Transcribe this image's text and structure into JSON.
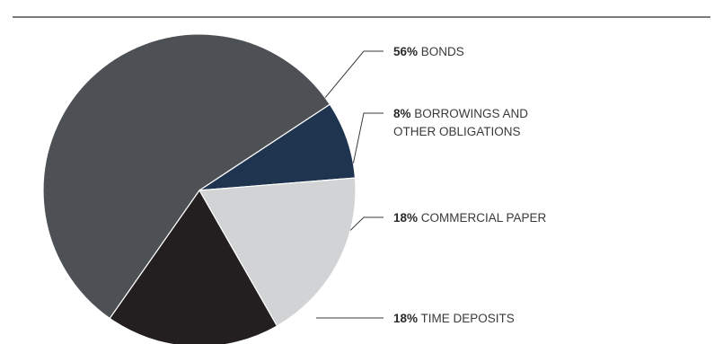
{
  "chart_data": {
    "type": "pie",
    "slices": [
      {
        "label": "BONDS",
        "label_lines": [
          "BONDS"
        ],
        "pct_text": "56%",
        "value": 56,
        "color": "#4d5054"
      },
      {
        "label": "BORROWINGS AND OTHER OBLIGATIONS",
        "label_lines": [
          "BORROWINGS AND",
          "OTHER OBLIGATIONS"
        ],
        "pct_text": "8%",
        "value": 8,
        "color": "#1e344f"
      },
      {
        "label": "COMMERCIAL PAPER",
        "label_lines": [
          "COMMERCIAL PAPER"
        ],
        "pct_text": "18%",
        "value": 18,
        "color": "#d2d3d4"
      },
      {
        "label": "TIME DEPOSITS",
        "label_lines": [
          "TIME DEPOSITS"
        ],
        "pct_text": "18%",
        "value": 18,
        "color": "#231f20"
      }
    ],
    "colors": {
      "top_rule": "#4d5054",
      "leader": "#3a3a3a",
      "separator": "#ffffff"
    }
  }
}
